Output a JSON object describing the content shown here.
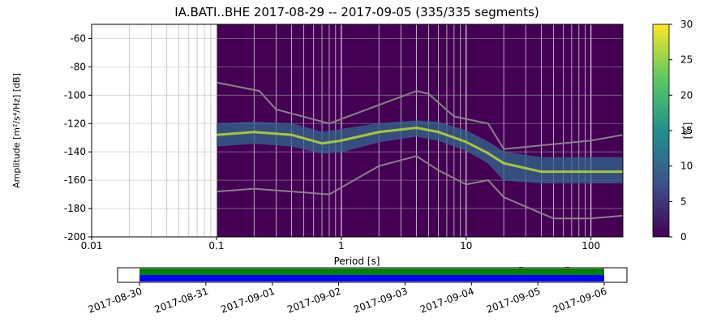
{
  "chart_data": [
    {
      "type": "ppsd",
      "title": "IA.BATI..BHE   2017-08-29 -- 2017-09-05  (335/335 segments)",
      "xlabel": "Period [s]",
      "ylabel": "Amplitude [m²/s⁴/Hz] [dB]",
      "xscale": "log",
      "xlim": [
        0.01,
        180
      ],
      "xticks": [
        0.01,
        0.1,
        1,
        10,
        100
      ],
      "ylim": [
        -200,
        -50
      ],
      "yticks": [
        -60,
        -80,
        -100,
        -120,
        -140,
        -160,
        -180,
        -200
      ],
      "grid": true,
      "background": "#440154",
      "density": {
        "x": [
          0.1,
          0.2,
          0.4,
          0.7,
          1,
          2,
          4,
          6,
          10,
          15,
          20,
          40,
          100,
          180
        ],
        "peak": [
          -128,
          -126,
          -128,
          -134,
          -132,
          -126,
          -123,
          -126,
          -133,
          -141,
          -148,
          -154,
          -154,
          -154
        ],
        "low": [
          -136,
          -134,
          -136,
          -141,
          -140,
          -133,
          -129,
          -132,
          -139,
          -148,
          -160,
          -162,
          -162,
          -162
        ],
        "high": [
          -120,
          -119,
          -120,
          -126,
          -124,
          -120,
          -118,
          -119,
          -125,
          -133,
          -140,
          -144,
          -144,
          -144
        ],
        "color": "#31688e",
        "peak_color": "#b5de2b"
      },
      "noise_models": [
        {
          "x": [
            0.1,
            0.22,
            0.3,
            0.8,
            4,
            5,
            8,
            15,
            20,
            100,
            180
          ],
          "values": [
            -91,
            -97,
            -110,
            -120,
            -97,
            -99,
            -115,
            -120,
            -138,
            -132,
            -128
          ],
          "color": "#8c7f8c"
        },
        {
          "x": [
            0.1,
            0.2,
            0.8,
            2,
            4,
            6,
            10,
            15,
            20,
            50,
            100,
            180
          ],
          "values": [
            -168,
            -166,
            -170,
            -150,
            -143,
            -153,
            -163,
            -160,
            -172,
            -187,
            -187,
            -185
          ],
          "color": "#8c7f8c"
        }
      ],
      "colorbar": {
        "label": "[%]",
        "lim": [
          0,
          30
        ],
        "ticks": [
          0,
          5,
          10,
          15,
          20,
          25,
          30
        ],
        "cmap": [
          "#440154",
          "#3b528b",
          "#21918c",
          "#5ec962",
          "#fde725"
        ]
      }
    },
    {
      "type": "timeline",
      "xticks": [
        "2017-08-30",
        "2017-08-31",
        "2017-09-01",
        "2017-09-02",
        "2017-09-03",
        "2017-09-04",
        "2017-09-05",
        "2017-09-06"
      ],
      "coverage": [
        {
          "color": "#008000"
        },
        {
          "color": "#0000ff"
        }
      ]
    }
  ]
}
